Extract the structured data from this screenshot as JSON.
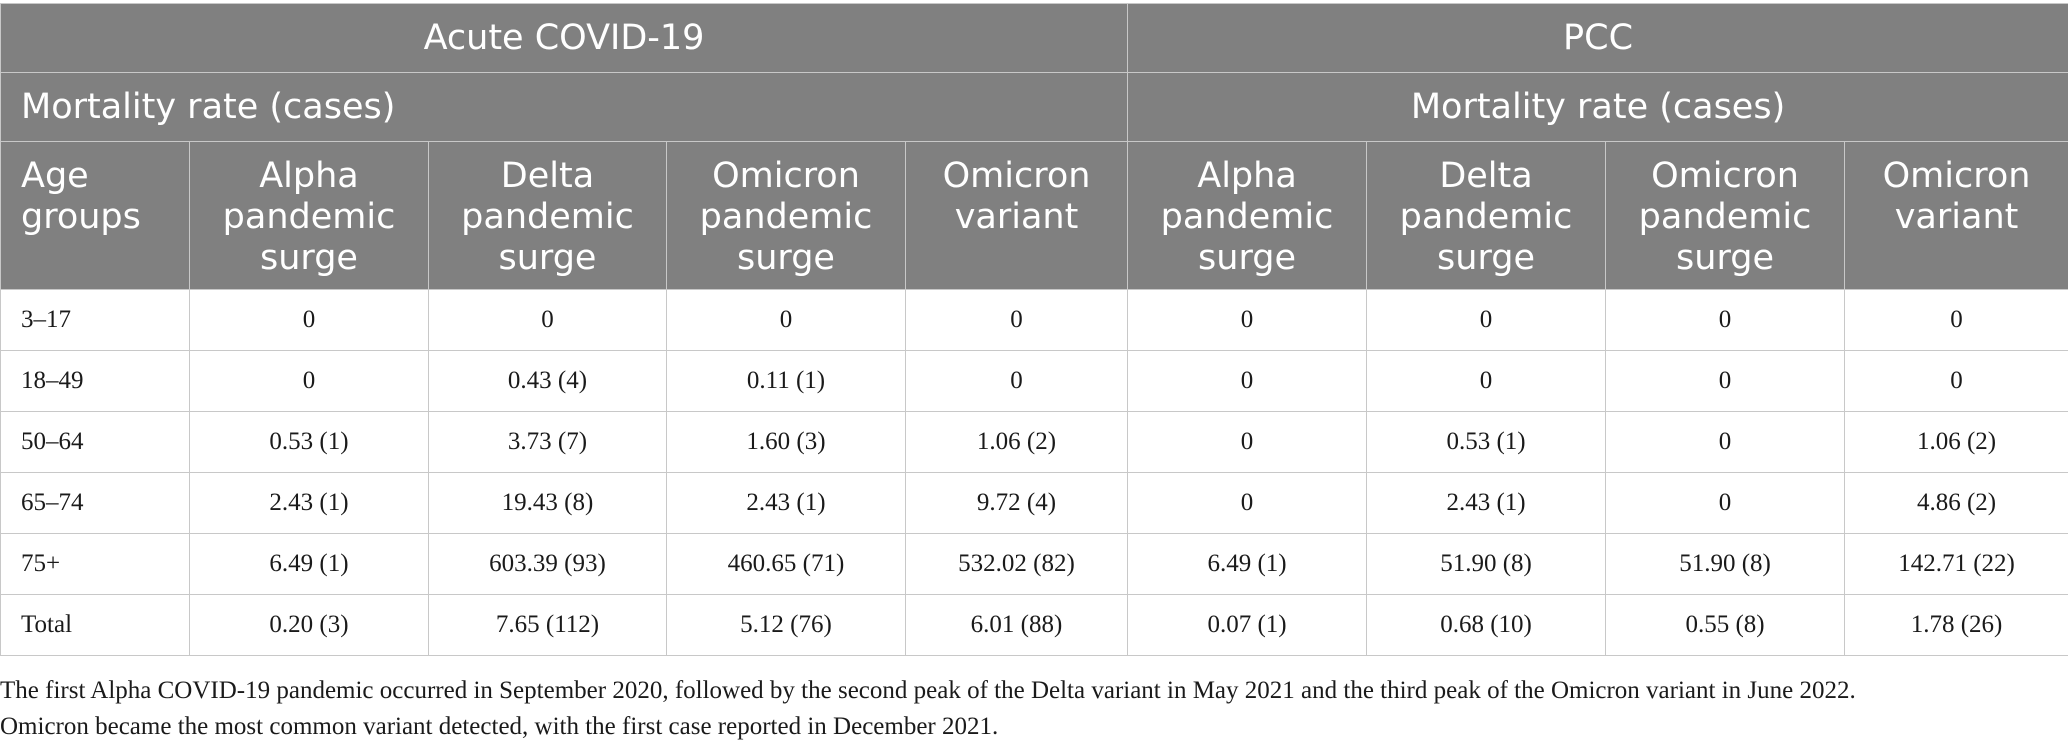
{
  "header": {
    "group_acute": "Acute COVID-19",
    "group_pcc": "PCC",
    "sub_acute": "Mortality rate (cases)",
    "sub_pcc": "Mortality rate (cases)",
    "columns": [
      "Age groups",
      "Alpha pandemic surge",
      "Delta pandemic surge",
      "Omicron pandemic surge",
      "Omicron variant",
      "Alpha pandemic surge",
      "Delta pandemic surge",
      "Omicron pandemic surge",
      "Omicron variant"
    ]
  },
  "rows": [
    [
      "3–17",
      "0",
      "0",
      "0",
      "0",
      "0",
      "0",
      "0",
      "0"
    ],
    [
      "18–49",
      "0",
      "0.43 (4)",
      "0.11 (1)",
      "0",
      "0",
      "0",
      "0",
      "0"
    ],
    [
      "50–64",
      "0.53 (1)",
      "3.73 (7)",
      "1.60 (3)",
      "1.06 (2)",
      "0",
      "0.53 (1)",
      "0",
      "1.06 (2)"
    ],
    [
      "65–74",
      "2.43 (1)",
      "19.43 (8)",
      "2.43 (1)",
      "9.72 (4)",
      "0",
      "2.43 (1)",
      "0",
      "4.86 (2)"
    ],
    [
      "75+",
      "6.49 (1)",
      "603.39 (93)",
      "460.65 (71)",
      "532.02 (82)",
      "6.49 (1)",
      "51.90 (8)",
      "51.90 (8)",
      "142.71 (22)"
    ],
    [
      "Total",
      "0.20 (3)",
      "7.65 (112)",
      "5.12 (76)",
      "6.01 (88)",
      "0.07 (1)",
      "0.68 (10)",
      "0.55 (8)",
      "1.78 (26)"
    ]
  ],
  "footnote": {
    "line1": "The first Alpha COVID-19 pandemic occurred in September 2020, followed by the second peak of the Delta variant in May 2021 and the third peak of the Omicron variant in June 2022.",
    "line2": "Omicron became the most common variant detected, with the first case reported in December 2021."
  }
}
